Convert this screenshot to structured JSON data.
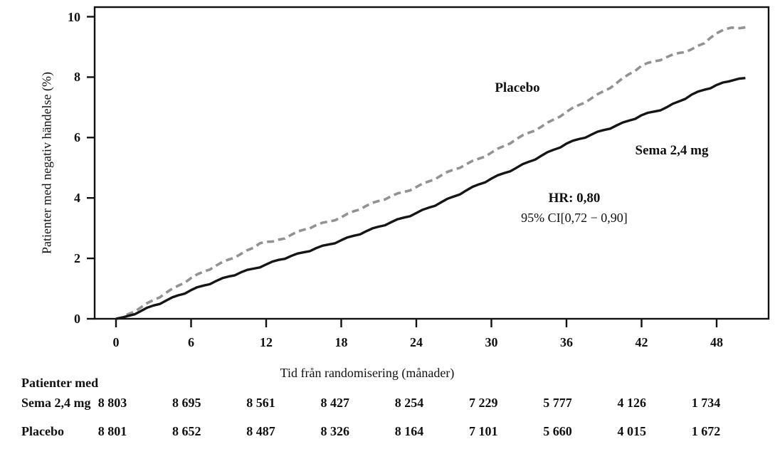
{
  "figure": {
    "background": "#ffffff",
    "axis_color": "#111111",
    "sema_color": "#151515",
    "placebo_color": "#929292"
  },
  "labels": {
    "y_axis_title": "Patienter med negativ händelse (%)",
    "x_axis_title": "Tid från randomisering (månader)",
    "placebo_curve": "Placebo",
    "sema_curve": "Sema 2,4 mg",
    "hr_line": "HR: 0,80",
    "ci_line": "95% CI[0,72 − 0,90]"
  },
  "chart_data": {
    "type": "line",
    "title": "",
    "xlabel": "Tid från randomisering (månader)",
    "ylabel": "Patienter med negativ händelse (%)",
    "xlim": [
      -1.7,
      52.2
    ],
    "ylim": [
      -0.05,
      10.3
    ],
    "x_ticks": [
      0,
      6,
      12,
      18,
      24,
      30,
      36,
      42,
      48
    ],
    "y_ticks": [
      0,
      2,
      4,
      6,
      8,
      10
    ],
    "grid": false,
    "legend_position": "inline-labels",
    "annotations": [
      "HR: 0,80",
      "95% CI[0,72 − 0,90]"
    ],
    "series": [
      {
        "name": "Placebo",
        "style": "dashed",
        "color": "#929292",
        "points": [
          [
            0,
            0
          ],
          [
            0.5,
            0.05
          ],
          [
            1,
            0.16
          ],
          [
            2,
            0.38
          ],
          [
            3,
            0.62
          ],
          [
            4,
            0.86
          ],
          [
            5,
            1.1
          ],
          [
            6,
            1.35
          ],
          [
            7,
            1.56
          ],
          [
            8,
            1.76
          ],
          [
            9,
            1.96
          ],
          [
            10,
            2.15
          ],
          [
            11,
            2.35
          ],
          [
            11.5,
            2.5
          ],
          [
            12,
            2.55
          ],
          [
            13,
            2.62
          ],
          [
            13.5,
            2.66
          ],
          [
            14,
            2.78
          ],
          [
            15,
            2.95
          ],
          [
            16,
            3.1
          ],
          [
            17,
            3.22
          ],
          [
            18,
            3.36
          ],
          [
            19,
            3.56
          ],
          [
            20,
            3.74
          ],
          [
            21,
            3.9
          ],
          [
            22,
            4.06
          ],
          [
            23,
            4.2
          ],
          [
            24,
            4.36
          ],
          [
            25,
            4.55
          ],
          [
            26,
            4.75
          ],
          [
            27,
            4.94
          ],
          [
            28,
            5.12
          ],
          [
            29,
            5.3
          ],
          [
            30,
            5.5
          ],
          [
            31,
            5.72
          ],
          [
            32,
            5.95
          ],
          [
            33,
            6.16
          ],
          [
            34,
            6.36
          ],
          [
            35,
            6.6
          ],
          [
            36,
            6.85
          ],
          [
            37,
            7.08
          ],
          [
            38,
            7.3
          ],
          [
            39,
            7.54
          ],
          [
            40,
            7.8
          ],
          [
            41,
            8.1
          ],
          [
            42,
            8.38
          ],
          [
            43,
            8.52
          ],
          [
            44,
            8.66
          ],
          [
            45,
            8.8
          ],
          [
            46,
            8.92
          ],
          [
            47,
            9.12
          ],
          [
            47.5,
            9.3
          ],
          [
            48,
            9.45
          ],
          [
            48.6,
            9.58
          ],
          [
            49.2,
            9.64
          ],
          [
            50.5,
            9.66
          ]
        ]
      },
      {
        "name": "Sema 2,4 mg",
        "style": "solid",
        "color": "#151515",
        "points": [
          [
            0,
            0
          ],
          [
            0.5,
            0.04
          ],
          [
            1,
            0.1
          ],
          [
            2,
            0.26
          ],
          [
            3,
            0.44
          ],
          [
            4,
            0.6
          ],
          [
            5,
            0.78
          ],
          [
            6,
            0.95
          ],
          [
            7,
            1.1
          ],
          [
            8,
            1.25
          ],
          [
            9,
            1.4
          ],
          [
            10,
            1.54
          ],
          [
            11,
            1.66
          ],
          [
            12,
            1.8
          ],
          [
            13,
            1.95
          ],
          [
            14,
            2.08
          ],
          [
            15,
            2.2
          ],
          [
            16,
            2.34
          ],
          [
            17,
            2.46
          ],
          [
            18,
            2.6
          ],
          [
            19,
            2.75
          ],
          [
            20,
            2.9
          ],
          [
            21,
            3.05
          ],
          [
            22,
            3.2
          ],
          [
            23,
            3.35
          ],
          [
            24,
            3.5
          ],
          [
            25,
            3.68
          ],
          [
            26,
            3.86
          ],
          [
            27,
            4.05
          ],
          [
            28,
            4.25
          ],
          [
            29,
            4.45
          ],
          [
            30,
            4.64
          ],
          [
            31,
            4.82
          ],
          [
            32,
            5.0
          ],
          [
            33,
            5.2
          ],
          [
            34,
            5.4
          ],
          [
            35,
            5.6
          ],
          [
            36,
            5.8
          ],
          [
            37,
            5.95
          ],
          [
            38,
            6.1
          ],
          [
            39,
            6.25
          ],
          [
            40,
            6.4
          ],
          [
            41,
            6.56
          ],
          [
            42,
            6.74
          ],
          [
            43,
            6.86
          ],
          [
            44,
            7.0
          ],
          [
            45,
            7.2
          ],
          [
            46,
            7.42
          ],
          [
            47,
            7.58
          ],
          [
            48,
            7.74
          ],
          [
            49,
            7.86
          ],
          [
            49.8,
            7.95
          ],
          [
            50.3,
            7.97
          ]
        ]
      }
    ]
  },
  "risk_table": {
    "header": "Patienter med",
    "rows": [
      {
        "label": "Sema 2,4 mg",
        "values": [
          "8 803",
          "8 695",
          "8 561",
          "8 427",
          "8 254",
          "7 229",
          "5 777",
          "4 126",
          "1 734"
        ]
      },
      {
        "label": "Placebo",
        "values": [
          "8 801",
          "8 652",
          "8 487",
          "8 326",
          "8 164",
          "7 101",
          "5 660",
          "4 015",
          "1 672"
        ]
      }
    ]
  }
}
